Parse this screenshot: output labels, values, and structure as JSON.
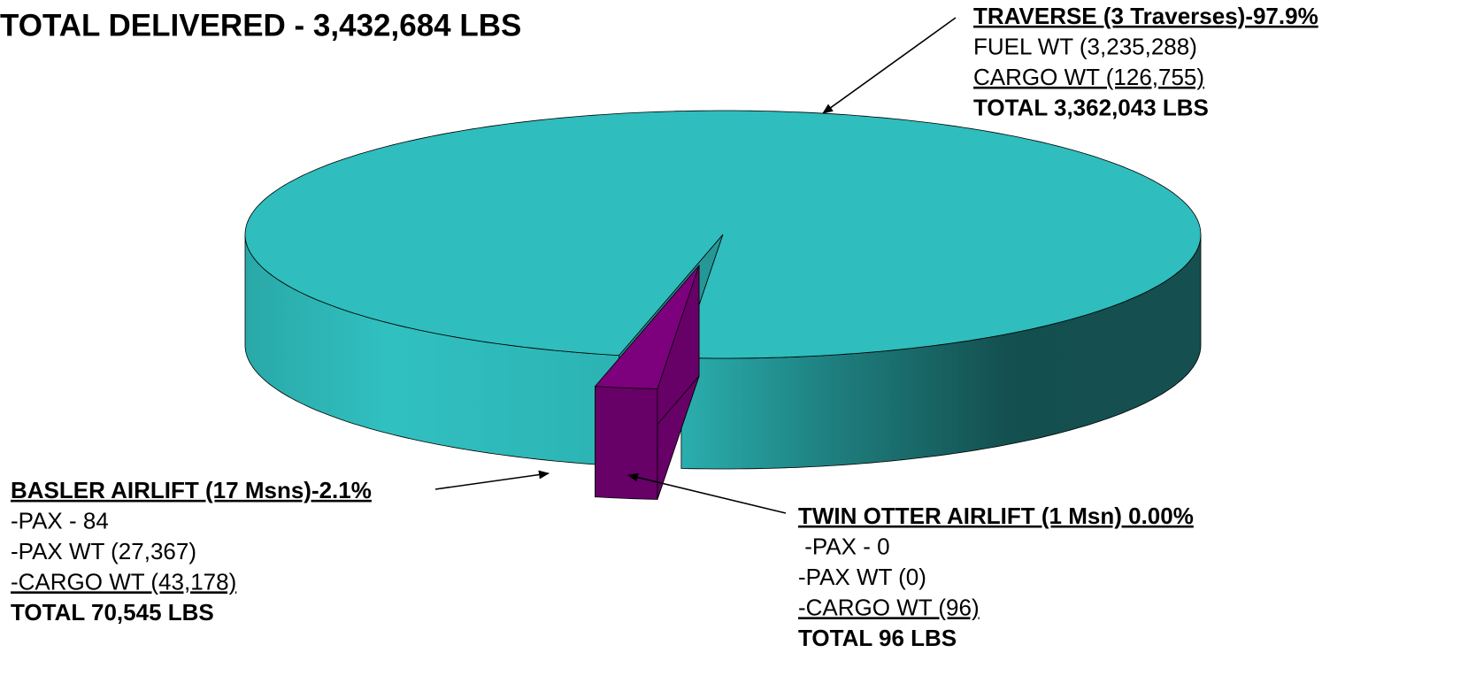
{
  "chart_data": {
    "type": "pie",
    "title": "TOTAL DELIVERED  -  3,432,684 LBS",
    "categories": [
      "TRAVERSE (3 Traverses)-97.9%",
      "BASLER AIRLIFT (17 Msns)-2.1%",
      "TWIN OTTER AIRLIFT (1 Msn) 0.00%"
    ],
    "values": [
      97.9,
      2.1,
      0
    ],
    "colors": [
      "#2fbdbd",
      "#7d007d",
      "#7a8f45"
    ],
    "annotations": [
      [
        "FUEL WT (3,235,288)",
        "CARGO WT (126,755)",
        "TOTAL 3,362,043 LBS"
      ],
      [
        "-PAX - 84",
        "-PAX WT (27,367)",
        "-CARGO WT (43,178)",
        "TOTAL 70,545 LBS"
      ],
      [
        " -PAX - 0",
        "-PAX WT (0)",
        "-CARGO WT (96)",
        "TOTAL 96 LBS"
      ]
    ]
  }
}
